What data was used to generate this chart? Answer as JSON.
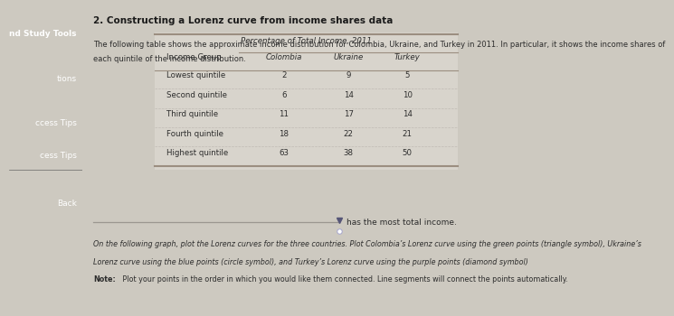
{
  "title": "2. Constructing a Lorenz curve from income shares data",
  "intro_line1": "The following table shows the approximate income distribution for Colombia, Ukraine, and Turkey in 2011. In particular, it shows the income shares of",
  "intro_line2": "each quintile of the income distribution.",
  "table_header_main": "Percentage of Total Income, 2011",
  "table_col_headers": [
    "Income Group",
    "Colombia",
    "Ukraine",
    "Turkey"
  ],
  "table_rows": [
    [
      "Lowest quintile",
      "2",
      "9",
      "5"
    ],
    [
      "Second quintile",
      "6",
      "14",
      "10"
    ],
    [
      "Third quintile",
      "11",
      "17",
      "14"
    ],
    [
      "Fourth quintile",
      "18",
      "22",
      "21"
    ],
    [
      "Highest quintile",
      "63",
      "38",
      "50"
    ]
  ],
  "dropdown_text": "has the most total income.",
  "note_line1": "On the following graph, plot the Lorenz curves for the three countries. Plot Colombia’s Lorenz curve using the green points (triangle symbol), Ukraine’s",
  "note_line2": "Lorenz curve using the blue points (circle symbol), and Turkey’s Lorenz curve using the purple points (diamond symbol)",
  "note_bold": "Note:",
  "note_tail": " Plot your points in the order in which you would like them connected. Line segments will connect the points automatically.",
  "sidebar_items": [
    "nd Study Tools",
    "tions",
    "ccess Tips",
    "cess Tips",
    "Back"
  ],
  "sidebar_bg": "#3d3d3d",
  "main_bg": "#cdc9c0",
  "table_bg": "#d8d4cc",
  "dropdown_line_color": "#9b9790",
  "title_color": "#1a1a1a",
  "text_color": "#2c2c2c",
  "table_border_color": "#9b8e80",
  "table_row_sep_color": "#c0bbb4"
}
